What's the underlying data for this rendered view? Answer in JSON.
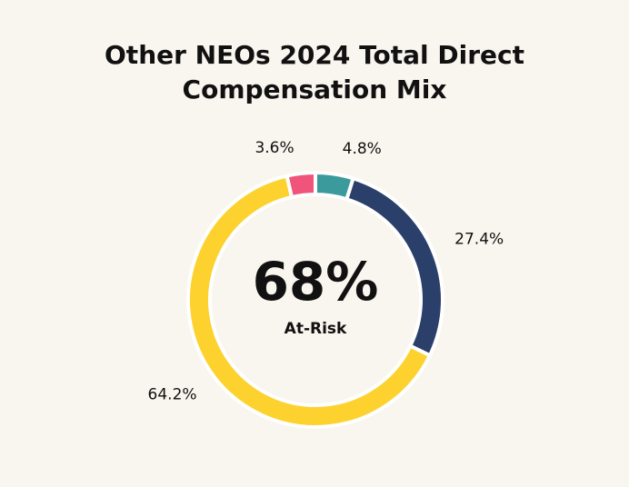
{
  "chart_data": {
    "type": "donut",
    "title": "Other NEOs 2024 Total Direct Compensation Mix",
    "center_text": "68%",
    "center_subtext": "At-Risk",
    "values": [
      4.8,
      27.4,
      64.2,
      3.6
    ],
    "value_labels": [
      "4.8%",
      "27.4%",
      "64.2%",
      "3.6%"
    ],
    "colors": [
      "#3a9a9c",
      "#2b3f6b",
      "#fdd22e",
      "#f0547a"
    ]
  }
}
